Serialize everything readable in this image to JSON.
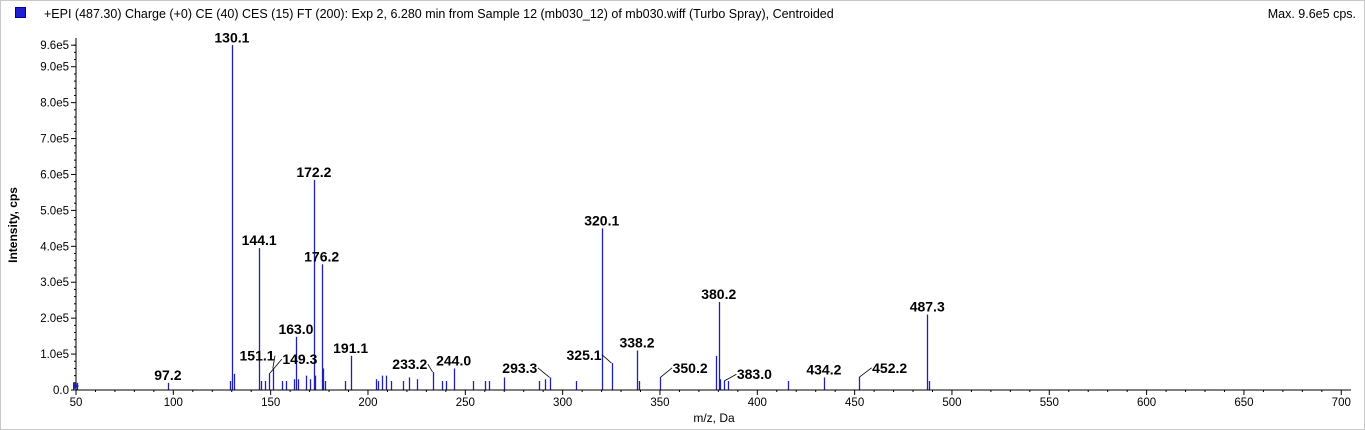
{
  "header": {
    "title": "+EPI (487.30) Charge (+0) CE (40) CES (15) FT (200): Exp 2, 6.280 min from Sample 12 (mb030_12) of mb030.wiff (Turbo Spray), Centroided",
    "max_label": "Max. 9.6e5 cps."
  },
  "colors": {
    "peak": "#1f1fb4",
    "axis": "#000000",
    "swatch": "#1f1fd0"
  },
  "chart_data": {
    "type": "bar",
    "xlabel": "m/z, Da",
    "ylabel": "Intensity, cps",
    "xlim": [
      50,
      705
    ],
    "ylim": [
      0,
      980000
    ],
    "xticks": [
      50,
      100,
      150,
      200,
      250,
      300,
      350,
      400,
      450,
      500,
      550,
      600,
      650,
      700
    ],
    "xtick_labels": [
      "50",
      "100",
      "150",
      "200",
      "250",
      "300",
      "350",
      "400",
      "450",
      "500",
      "550",
      "600",
      "650",
      "700"
    ],
    "yticks": [
      0,
      100000,
      200000,
      300000,
      400000,
      500000,
      600000,
      700000,
      800000,
      900000,
      960000
    ],
    "ytick_labels": [
      "0.0",
      "1.0e5",
      "2.0e5",
      "3.0e5",
      "4.0e5",
      "5.0e5",
      "6.0e5",
      "7.0e5",
      "8.0e5",
      "9.0e5",
      "9.6e5"
    ],
    "peaks": [
      {
        "x": 50.5,
        "y": 20000
      },
      {
        "x": 97.2,
        "y": 20000
      },
      {
        "x": 129.0,
        "y": 25000
      },
      {
        "x": 130.1,
        "y": 960000
      },
      {
        "x": 131.0,
        "y": 45000
      },
      {
        "x": 144.1,
        "y": 395000
      },
      {
        "x": 145.0,
        "y": 25000
      },
      {
        "x": 147.0,
        "y": 25000
      },
      {
        "x": 149.3,
        "y": 45000
      },
      {
        "x": 151.1,
        "y": 60000
      },
      {
        "x": 156.0,
        "y": 25000
      },
      {
        "x": 158.0,
        "y": 25000
      },
      {
        "x": 162.0,
        "y": 30000
      },
      {
        "x": 163.0,
        "y": 148000
      },
      {
        "x": 164.0,
        "y": 30000
      },
      {
        "x": 168.0,
        "y": 40000
      },
      {
        "x": 170.0,
        "y": 30000
      },
      {
        "x": 172.2,
        "y": 585000
      },
      {
        "x": 173.0,
        "y": 40000
      },
      {
        "x": 176.2,
        "y": 350000
      },
      {
        "x": 177.0,
        "y": 60000
      },
      {
        "x": 178.0,
        "y": 25000
      },
      {
        "x": 188.0,
        "y": 25000
      },
      {
        "x": 191.1,
        "y": 95000
      },
      {
        "x": 204.0,
        "y": 30000
      },
      {
        "x": 205.0,
        "y": 25000
      },
      {
        "x": 207.0,
        "y": 40000
      },
      {
        "x": 209.0,
        "y": 40000
      },
      {
        "x": 212.0,
        "y": 25000
      },
      {
        "x": 218.0,
        "y": 25000
      },
      {
        "x": 221.0,
        "y": 35000
      },
      {
        "x": 225.0,
        "y": 30000
      },
      {
        "x": 233.2,
        "y": 50000
      },
      {
        "x": 238.0,
        "y": 25000
      },
      {
        "x": 240.0,
        "y": 25000
      },
      {
        "x": 244.0,
        "y": 60000
      },
      {
        "x": 254.0,
        "y": 25000
      },
      {
        "x": 260.0,
        "y": 25000
      },
      {
        "x": 262.0,
        "y": 25000
      },
      {
        "x": 270.0,
        "y": 35000
      },
      {
        "x": 288.0,
        "y": 25000
      },
      {
        "x": 291.0,
        "y": 30000
      },
      {
        "x": 293.3,
        "y": 35000
      },
      {
        "x": 307.0,
        "y": 25000
      },
      {
        "x": 320.1,
        "y": 450000
      },
      {
        "x": 325.1,
        "y": 75000
      },
      {
        "x": 338.2,
        "y": 110000
      },
      {
        "x": 339.0,
        "y": 25000
      },
      {
        "x": 350.2,
        "y": 35000
      },
      {
        "x": 379.0,
        "y": 95000
      },
      {
        "x": 380.2,
        "y": 245000
      },
      {
        "x": 381.0,
        "y": 30000
      },
      {
        "x": 383.0,
        "y": 25000
      },
      {
        "x": 385.0,
        "y": 25000
      },
      {
        "x": 416.0,
        "y": 25000
      },
      {
        "x": 434.2,
        "y": 35000
      },
      {
        "x": 452.2,
        "y": 35000
      },
      {
        "x": 487.3,
        "y": 210000
      },
      {
        "x": 488.0,
        "y": 25000
      }
    ],
    "peak_labels": [
      {
        "text": "97.2",
        "x": 97.2,
        "y": 20000,
        "lx": 97.2,
        "ly": 28000,
        "leader": false
      },
      {
        "text": "130.1",
        "x": 130.1,
        "y": 960000,
        "lx": 130.1,
        "ly": 968000,
        "leader": false
      },
      {
        "text": "144.1",
        "x": 144.1,
        "y": 395000,
        "lx": 144.1,
        "ly": 403000,
        "leader": false
      },
      {
        "text": "151.1",
        "x": 151.1,
        "y": 60000,
        "lx": 143.0,
        "ly": 82000,
        "leader": true
      },
      {
        "text": "149.3",
        "x": 149.3,
        "y": 45000,
        "lx": 165.0,
        "ly": 72000,
        "leader": true
      },
      {
        "text": "163.0",
        "x": 163.0,
        "y": 148000,
        "lx": 163.0,
        "ly": 156000,
        "leader": false
      },
      {
        "text": "172.2",
        "x": 172.2,
        "y": 585000,
        "lx": 172.2,
        "ly": 593000,
        "leader": false
      },
      {
        "text": "176.2",
        "x": 176.2,
        "y": 350000,
        "lx": 176.2,
        "ly": 358000,
        "leader": false
      },
      {
        "text": "191.1",
        "x": 191.1,
        "y": 95000,
        "lx": 191.1,
        "ly": 103000,
        "leader": false
      },
      {
        "text": "233.2",
        "x": 233.2,
        "y": 50000,
        "lx": 221.5,
        "ly": 58000,
        "leader": true
      },
      {
        "text": "244.0",
        "x": 244.0,
        "y": 60000,
        "lx": 244.0,
        "ly": 68000,
        "leader": false
      },
      {
        "text": "293.3",
        "x": 293.3,
        "y": 35000,
        "lx": 278.0,
        "ly": 48000,
        "leader": true
      },
      {
        "text": "320.1",
        "x": 320.1,
        "y": 450000,
        "lx": 320.1,
        "ly": 458000,
        "leader": false
      },
      {
        "text": "325.1",
        "x": 325.1,
        "y": 75000,
        "lx": 311.0,
        "ly": 84000,
        "leader": true
      },
      {
        "text": "338.2",
        "x": 338.2,
        "y": 110000,
        "lx": 338.2,
        "ly": 118000,
        "leader": false
      },
      {
        "text": "350.2",
        "x": 350.2,
        "y": 35000,
        "lx": 365.5,
        "ly": 48000,
        "leader": true
      },
      {
        "text": "380.2",
        "x": 380.2,
        "y": 245000,
        "lx": 380.2,
        "ly": 253000,
        "leader": false
      },
      {
        "text": "383.0",
        "x": 383.0,
        "y": 25000,
        "lx": 398.5,
        "ly": 30000,
        "leader": true
      },
      {
        "text": "434.2",
        "x": 434.2,
        "y": 35000,
        "lx": 434.2,
        "ly": 43000,
        "leader": false
      },
      {
        "text": "452.2",
        "x": 452.2,
        "y": 35000,
        "lx": 468.0,
        "ly": 48000,
        "leader": true
      },
      {
        "text": "487.3",
        "x": 487.3,
        "y": 210000,
        "lx": 487.3,
        "ly": 218000,
        "leader": false
      }
    ]
  }
}
